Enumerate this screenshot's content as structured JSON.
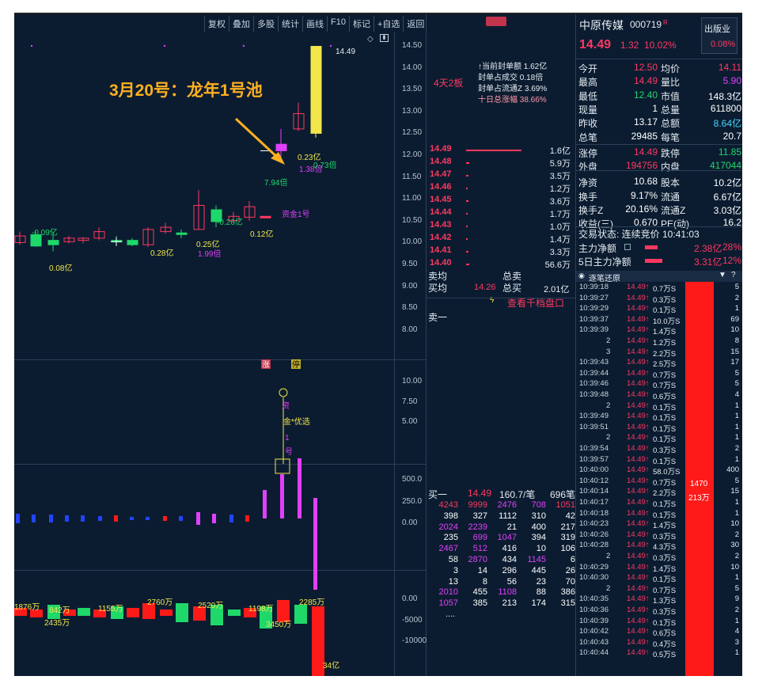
{
  "toolbar": [
    "复权",
    "叠加",
    "多股",
    "统计",
    "画线",
    "F10",
    "标记",
    "+自选",
    "返回"
  ],
  "annotation": {
    "title": "3月20号：龙年1号池"
  },
  "price_axis": [
    "14.50",
    "14.00",
    "13.50",
    "13.00",
    "12.50",
    "12.00",
    "11.50",
    "11.00",
    "10.50",
    "10.00",
    "9.50",
    "9.00",
    "8.50",
    "8.00"
  ],
  "ind1_axis": [
    "10.00",
    "7.50",
    "5.00"
  ],
  "ind2_axis": [
    "500.0",
    "250.0",
    "0.00"
  ],
  "ind3_axis": [
    "0.00",
    "-5000",
    "-10000"
  ],
  "chart_labels": {
    "high": "14.49",
    "amt_last": "0.23亿",
    "ratio_last": "1.38倍",
    "ratio_last2": "0.73倍",
    "ratio_first": "7.94倍",
    "fund_label": "资金1号",
    "amt_a": "-0.09亿",
    "amt_b": "0.08亿",
    "amt_c": "0.28亿",
    "amt_d": "0.25亿",
    "amt_e": "-0.26亿",
    "amt_f": "0.12亿",
    "ratio_b": "1.99倍",
    "zhang": "涨",
    "ting": "停",
    "signal_a": "资",
    "signal_b": "金*优选",
    "signal_c": "1",
    "signal_d": "号"
  },
  "flow_labels": [
    "1876万",
    "842万",
    "2435万",
    "1155万",
    "2760万",
    "2520万",
    "1198万",
    "3450万",
    "2285万",
    "34亿"
  ],
  "seal": {
    "days": "4天2板",
    "lines": [
      "↑当前封单额 1.62亿",
      "封单占成交 0.18倍",
      "封单占流通Z 3.69%",
      "十日总涨幅 38.66%"
    ]
  },
  "ladder": [
    {
      "p": "14.49",
      "q": "1.6亿",
      "w": 1.0
    },
    {
      "p": "14.48",
      "q": "5.9万",
      "w": 0.05
    },
    {
      "p": "14.47",
      "q": "3.5万",
      "w": 0.04
    },
    {
      "p": "14.46",
      "q": "1.2万",
      "w": 0.03
    },
    {
      "p": "14.45",
      "q": "3.6万",
      "w": 0.04
    },
    {
      "p": "14.44",
      "q": "1.7万",
      "w": 0.03
    },
    {
      "p": "14.43",
      "q": "1.0万",
      "w": 0.03
    },
    {
      "p": "14.42",
      "q": "1.4万",
      "w": 0.03
    },
    {
      "p": "14.41",
      "q": "3.3万",
      "w": 0.04
    },
    {
      "p": "14.40",
      "q": "56.6万",
      "w": 0.06
    }
  ],
  "order_summary": {
    "sell_avg": "卖均",
    "total_sell": "总卖",
    "buy_avg": "买均",
    "buy_avg_val": "14.26",
    "total_buy": "总买",
    "total_buy_val": "2.01亿",
    "link": "查看千档盘口",
    "sell1": "卖一",
    "buy1": "买一",
    "buy1_price": "14.49",
    "buy1_qty": "160.7/笔",
    "buy1_cnt": "696笔",
    "more": "...."
  },
  "queue": [
    [
      "4243",
      "9999",
      "2476",
      "708",
      "1051"
    ],
    [
      "398",
      "327",
      "1112",
      "310",
      "42"
    ],
    [
      "2024",
      "2239",
      "21",
      "400",
      "217"
    ],
    [
      "235",
      "699",
      "1047",
      "394",
      "319"
    ],
    [
      "2467",
      "512",
      "416",
      "10",
      "106"
    ],
    [
      "58",
      "2870",
      "434",
      "1145",
      "6"
    ],
    [
      "3",
      "14",
      "296",
      "445",
      "26"
    ],
    [
      "13",
      "8",
      "56",
      "23",
      "70"
    ],
    [
      "2010",
      "455",
      "1108",
      "88",
      "386"
    ],
    [
      "1057",
      "385",
      "213",
      "174",
      "315"
    ]
  ],
  "stock": {
    "name": "中原传媒",
    "code": "000719",
    "badge": "R",
    "industry": "出版业",
    "price": "14.49",
    "chg": "1.32",
    "pct": "10.02%",
    "ind_pct": "0.08%"
  },
  "stats": [
    [
      "今开",
      "12.50",
      "均价",
      "14.11"
    ],
    [
      "最高",
      "14.49",
      "量比",
      "5.90"
    ],
    [
      "最低",
      "12.40",
      "市值",
      "148.3亿"
    ],
    [
      "现量",
      "1",
      "总量",
      "611800"
    ],
    [
      "昨收",
      "13.17",
      "总额",
      "8.64亿"
    ],
    [
      "总笔",
      "29485",
      "每笔",
      "20.7"
    ],
    [
      "涨停",
      "14.49",
      "跌停",
      "11.85"
    ],
    [
      "外盘",
      "194756",
      "内盘",
      "417044"
    ],
    [
      "净资",
      "10.68",
      "股本",
      "10.2亿"
    ],
    [
      "换手",
      "9.17%",
      "流通",
      "6.67亿"
    ],
    [
      "换手Z",
      "20.16%",
      "流通Z",
      "3.03亿"
    ],
    [
      "收益(三)",
      "0.670",
      "PE(动)",
      "16.2"
    ]
  ],
  "trade_state": "交易状态: 连续竞价 10:41:03",
  "main_flow": {
    "label": "主力净额",
    "val": "2.38亿",
    "pct": "28%"
  },
  "main_flow5": {
    "label": "5日主力净额",
    "val": "3.31亿",
    "pct": "12%"
  },
  "ticks_title": "逐笔还原",
  "ticks": [
    [
      "10:39:18",
      "14.49",
      "0.7万S",
      "5"
    ],
    [
      "10:39:27",
      "14.49",
      "0.3万S",
      "2"
    ],
    [
      "10:39:29",
      "14.49",
      "0.1万S",
      "1"
    ],
    [
      "10:39:37",
      "14.49",
      "10.0万S",
      "69"
    ],
    [
      "10:39:39",
      "14.49",
      "1.4万S",
      "10"
    ],
    [
      "2",
      "14.49",
      "1.2万S",
      "8"
    ],
    [
      "3",
      "14.49",
      "2.2万S",
      "15"
    ],
    [
      "10:39:43",
      "14.49",
      "2.5万S",
      "17"
    ],
    [
      "10:39:44",
      "14.49",
      "0.7万S",
      "5"
    ],
    [
      "10:39:46",
      "14.49",
      "0.7万S",
      "5"
    ],
    [
      "10:39:48",
      "14.49",
      "0.6万S",
      "4"
    ],
    [
      "2",
      "14.49",
      "0.1万S",
      "1"
    ],
    [
      "10:39:49",
      "14.49",
      "0.1万S",
      "1"
    ],
    [
      "10:39:51",
      "14.49",
      "0.1万S",
      "1"
    ],
    [
      "2",
      "14.49",
      "0.1万S",
      "1"
    ],
    [
      "10:39:54",
      "14.49",
      "0.3万S",
      "2"
    ],
    [
      "10:39:57",
      "14.49",
      "0.1万S",
      "1"
    ],
    [
      "10:40:00",
      "14.49",
      "58.0万S",
      "400"
    ],
    [
      "10:40:12",
      "14.49",
      "0.7万S",
      "5"
    ],
    [
      "10:40:14",
      "14.49",
      "2.2万S",
      "15"
    ],
    [
      "10:40:17",
      "14.49",
      "0.1万S",
      "1"
    ],
    [
      "10:40:18",
      "14.49",
      "0.1万S",
      "1"
    ],
    [
      "10:40:23",
      "14.49",
      "1.4万S",
      "10"
    ],
    [
      "10:40:26",
      "14.49",
      "0.3万S",
      "2"
    ],
    [
      "10:40:28",
      "14.49",
      "4.3万S",
      "30"
    ],
    [
      "2",
      "14.49",
      "0.3万S",
      "2"
    ],
    [
      "10:40:29",
      "14.49",
      "1.4万S",
      "10"
    ],
    [
      "10:40:30",
      "14.49",
      "0.1万S",
      "1"
    ],
    [
      "2",
      "14.49",
      "0.7万S",
      "5"
    ],
    [
      "10:40:35",
      "14.49",
      "1.3万S",
      "9"
    ],
    [
      "10:40:36",
      "14.49",
      "0.3万S",
      "2"
    ],
    [
      "10:40:39",
      "14.49",
      "0.1万S",
      "1"
    ],
    [
      "10:40:42",
      "14.49",
      "0.6万S",
      "4"
    ],
    [
      "10:40:43",
      "14.49",
      "0.4万S",
      "3"
    ],
    [
      "10:40:44",
      "14.49",
      "0.5万S",
      "1"
    ]
  ],
  "big_bar": {
    "a": "1470",
    "b": "213万"
  },
  "colors": {
    "bg": "#0b1c30",
    "up": "#ff3860",
    "down": "#1fd86a",
    "yellow": "#f2e64a",
    "magenta": "#e040fb"
  },
  "icons": [
    "diamond-icon",
    "settings-icon",
    "lightning-icon",
    "pin-icon",
    "question-icon"
  ]
}
